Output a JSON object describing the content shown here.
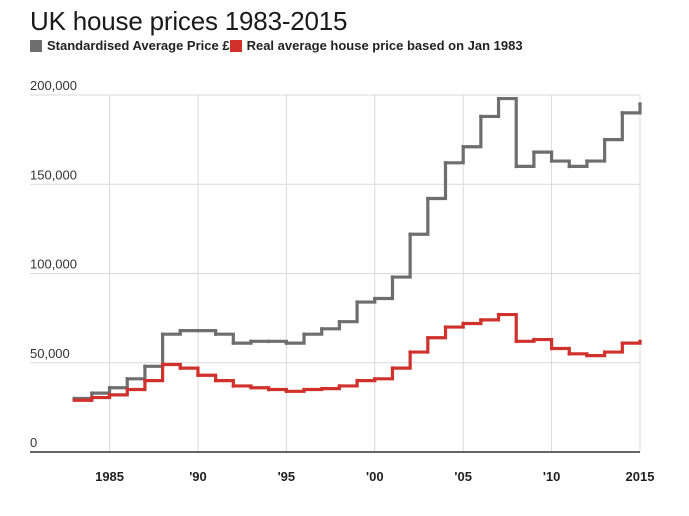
{
  "title": "UK house prices 1983-2015",
  "colors": {
    "series1": "#6e6e6e",
    "series2": "#d0312d",
    "grid": "#d9d9d9",
    "axis": "#333333"
  },
  "chart_data": {
    "type": "line",
    "title": "UK house prices 1983-2015",
    "xlabel": "",
    "ylabel": "",
    "xlim": [
      1980.5,
      2015
    ],
    "ylim": [
      0,
      200000
    ],
    "y_ticks": [
      {
        "value": 0,
        "label": "0"
      },
      {
        "value": 50000,
        "label": "50,000"
      },
      {
        "value": 100000,
        "label": "100,000"
      },
      {
        "value": 150000,
        "label": "150,000"
      },
      {
        "value": 200000,
        "label": "200,000"
      }
    ],
    "x_ticks": [
      {
        "value": 1985,
        "label": "1985"
      },
      {
        "value": 1990,
        "label": "'90"
      },
      {
        "value": 1995,
        "label": "'95"
      },
      {
        "value": 2000,
        "label": "'00"
      },
      {
        "value": 2005,
        "label": "'05"
      },
      {
        "value": 2010,
        "label": "'10"
      },
      {
        "value": 2015,
        "label": "2015"
      }
    ],
    "grid": true,
    "legend": "top-left",
    "series": [
      {
        "name": "Standardised Average Price £",
        "color": "#6e6e6e",
        "points": [
          [
            1983,
            30000
          ],
          [
            1984,
            33000
          ],
          [
            1985,
            36000
          ],
          [
            1986,
            41000
          ],
          [
            1987,
            48000
          ],
          [
            1988,
            66000
          ],
          [
            1989,
            68000
          ],
          [
            1990,
            68000
          ],
          [
            1991,
            66000
          ],
          [
            1992,
            61000
          ],
          [
            1993,
            62000
          ],
          [
            1994,
            62000
          ],
          [
            1995,
            61000
          ],
          [
            1996,
            66000
          ],
          [
            1997,
            69000
          ],
          [
            1998,
            73000
          ],
          [
            1999,
            84000
          ],
          [
            2000,
            86000
          ],
          [
            2001,
            98000
          ],
          [
            2002,
            122000
          ],
          [
            2003,
            142000
          ],
          [
            2004,
            162000
          ],
          [
            2005,
            171000
          ],
          [
            2006,
            188000
          ],
          [
            2007,
            198000
          ],
          [
            2008,
            160000
          ],
          [
            2009,
            168000
          ],
          [
            2010,
            163000
          ],
          [
            2011,
            160000
          ],
          [
            2012,
            163000
          ],
          [
            2013,
            175000
          ],
          [
            2014,
            190000
          ],
          [
            2015,
            195000
          ]
        ]
      },
      {
        "name": "Real average house price based on Jan 1983",
        "color": "#d0312d",
        "points": [
          [
            1983,
            29000
          ],
          [
            1984,
            30500
          ],
          [
            1985,
            32000
          ],
          [
            1986,
            35000
          ],
          [
            1987,
            40000
          ],
          [
            1988,
            49000
          ],
          [
            1989,
            47000
          ],
          [
            1990,
            43000
          ],
          [
            1991,
            40000
          ],
          [
            1992,
            37000
          ],
          [
            1993,
            36000
          ],
          [
            1994,
            35000
          ],
          [
            1995,
            34000
          ],
          [
            1996,
            35000
          ],
          [
            1997,
            35500
          ],
          [
            1998,
            37000
          ],
          [
            1999,
            40000
          ],
          [
            2000,
            41000
          ],
          [
            2001,
            47000
          ],
          [
            2002,
            56000
          ],
          [
            2003,
            64000
          ],
          [
            2004,
            70000
          ],
          [
            2005,
            72000
          ],
          [
            2006,
            74000
          ],
          [
            2007,
            77000
          ],
          [
            2008,
            62000
          ],
          [
            2009,
            63000
          ],
          [
            2010,
            58000
          ],
          [
            2011,
            55000
          ],
          [
            2012,
            54000
          ],
          [
            2013,
            56000
          ],
          [
            2014,
            61000
          ],
          [
            2015,
            62000
          ]
        ]
      }
    ]
  }
}
